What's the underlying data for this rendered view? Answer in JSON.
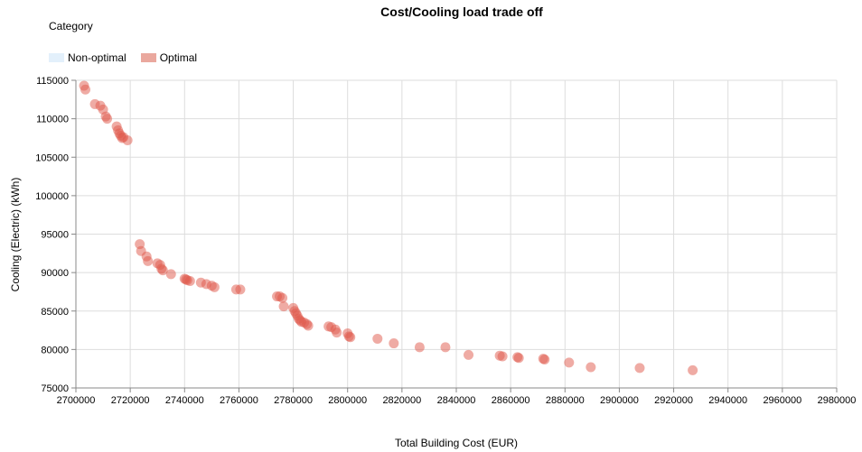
{
  "chart_data": {
    "type": "scatter",
    "title": "Cost/Cooling load trade off",
    "xlabel": "Total Building Cost (EUR)",
    "ylabel": "Cooling (Electric) (kWh)",
    "xlim": [
      2700000,
      2980000
    ],
    "ylim": [
      75000,
      115000
    ],
    "x_ticks": [
      "2700000",
      "2720000",
      "2740000",
      "2760000",
      "2780000",
      "2800000",
      "2820000",
      "2840000",
      "2860000",
      "2880000",
      "2900000",
      "2920000",
      "2940000",
      "2960000",
      "2980000"
    ],
    "y_ticks": [
      "75000",
      "80000",
      "85000",
      "90000",
      "95000",
      "100000",
      "105000",
      "110000",
      "115000"
    ],
    "grid": true,
    "legend": {
      "title": "Category",
      "placement": "top-left",
      "entries": [
        {
          "label": "Non-optimal",
          "color": "#e3f0fb"
        },
        {
          "label": "Optimal",
          "color": "#eaa89e"
        }
      ]
    },
    "series": [
      {
        "name": "Non-optimal",
        "color": "#c6dbef",
        "points": []
      },
      {
        "name": "Optimal",
        "color": "#e0574a",
        "points": [
          [
            2703000,
            114300
          ],
          [
            2703500,
            113800
          ],
          [
            2707000,
            111900
          ],
          [
            2709000,
            111700
          ],
          [
            2710000,
            111200
          ],
          [
            2711000,
            110300
          ],
          [
            2711500,
            110000
          ],
          [
            2715000,
            109000
          ],
          [
            2715500,
            108500
          ],
          [
            2716000,
            108100
          ],
          [
            2716500,
            107800
          ],
          [
            2717000,
            107500
          ],
          [
            2717500,
            107600
          ],
          [
            2719000,
            107200
          ],
          [
            2723500,
            93700
          ],
          [
            2724000,
            92800
          ],
          [
            2726000,
            92100
          ],
          [
            2726500,
            91500
          ],
          [
            2730000,
            91200
          ],
          [
            2731000,
            91000
          ],
          [
            2731500,
            90500
          ],
          [
            2732000,
            90300
          ],
          [
            2735000,
            89800
          ],
          [
            2740000,
            89200
          ],
          [
            2740500,
            89100
          ],
          [
            2741000,
            89000
          ],
          [
            2742000,
            88900
          ],
          [
            2746000,
            88700
          ],
          [
            2748000,
            88500
          ],
          [
            2750000,
            88300
          ],
          [
            2751000,
            88100
          ],
          [
            2759000,
            87800
          ],
          [
            2760500,
            87800
          ],
          [
            2774000,
            86900
          ],
          [
            2775000,
            86900
          ],
          [
            2776000,
            86700
          ],
          [
            2776500,
            85600
          ],
          [
            2780000,
            85400
          ],
          [
            2780500,
            85000
          ],
          [
            2781000,
            84700
          ],
          [
            2781500,
            84400
          ],
          [
            2782000,
            84000
          ],
          [
            2782500,
            83800
          ],
          [
            2783000,
            83600
          ],
          [
            2784000,
            83500
          ],
          [
            2785000,
            83300
          ],
          [
            2785500,
            83100
          ],
          [
            2793000,
            83000
          ],
          [
            2794000,
            82900
          ],
          [
            2795500,
            82600
          ],
          [
            2796000,
            82200
          ],
          [
            2800000,
            82100
          ],
          [
            2800500,
            81700
          ],
          [
            2801000,
            81600
          ],
          [
            2811000,
            81400
          ],
          [
            2817000,
            80800
          ],
          [
            2826500,
            80300
          ],
          [
            2836000,
            80300
          ],
          [
            2844500,
            79300
          ],
          [
            2856000,
            79200
          ],
          [
            2857000,
            79100
          ],
          [
            2862500,
            79000
          ],
          [
            2863000,
            78900
          ],
          [
            2872000,
            78800
          ],
          [
            2872500,
            78700
          ],
          [
            2881500,
            78300
          ],
          [
            2889500,
            77700
          ],
          [
            2907500,
            77600
          ],
          [
            2927000,
            77300
          ]
        ]
      }
    ]
  }
}
